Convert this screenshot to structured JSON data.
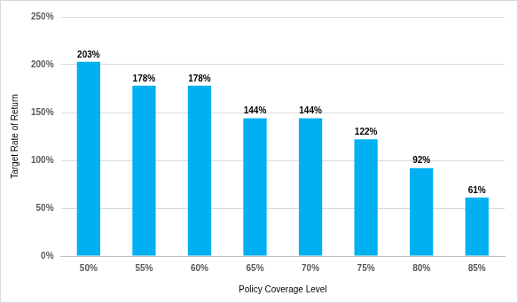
{
  "chart_data": {
    "type": "bar",
    "x_label": "Policy Coverage Level",
    "y_label": "Target Rate of Return",
    "categories": [
      "50%",
      "55%",
      "60%",
      "65%",
      "70%",
      "75%",
      "80%",
      "85%"
    ],
    "values": [
      203,
      178,
      178,
      144,
      144,
      122,
      92,
      61
    ],
    "value_labels": [
      "203%",
      "178%",
      "178%",
      "144%",
      "144%",
      "122%",
      "92%",
      "61%"
    ],
    "color": "#00b0f0",
    "ylim": [
      0,
      250
    ],
    "yticks": [
      {
        "value": 0,
        "label": "0%"
      },
      {
        "value": 50,
        "label": "50%"
      },
      {
        "value": 100,
        "label": "100%"
      },
      {
        "value": 150,
        "label": "150%"
      },
      {
        "value": 200,
        "label": "200%"
      },
      {
        "value": 250,
        "label": "250%"
      }
    ],
    "grid": true,
    "data_labels": true
  }
}
